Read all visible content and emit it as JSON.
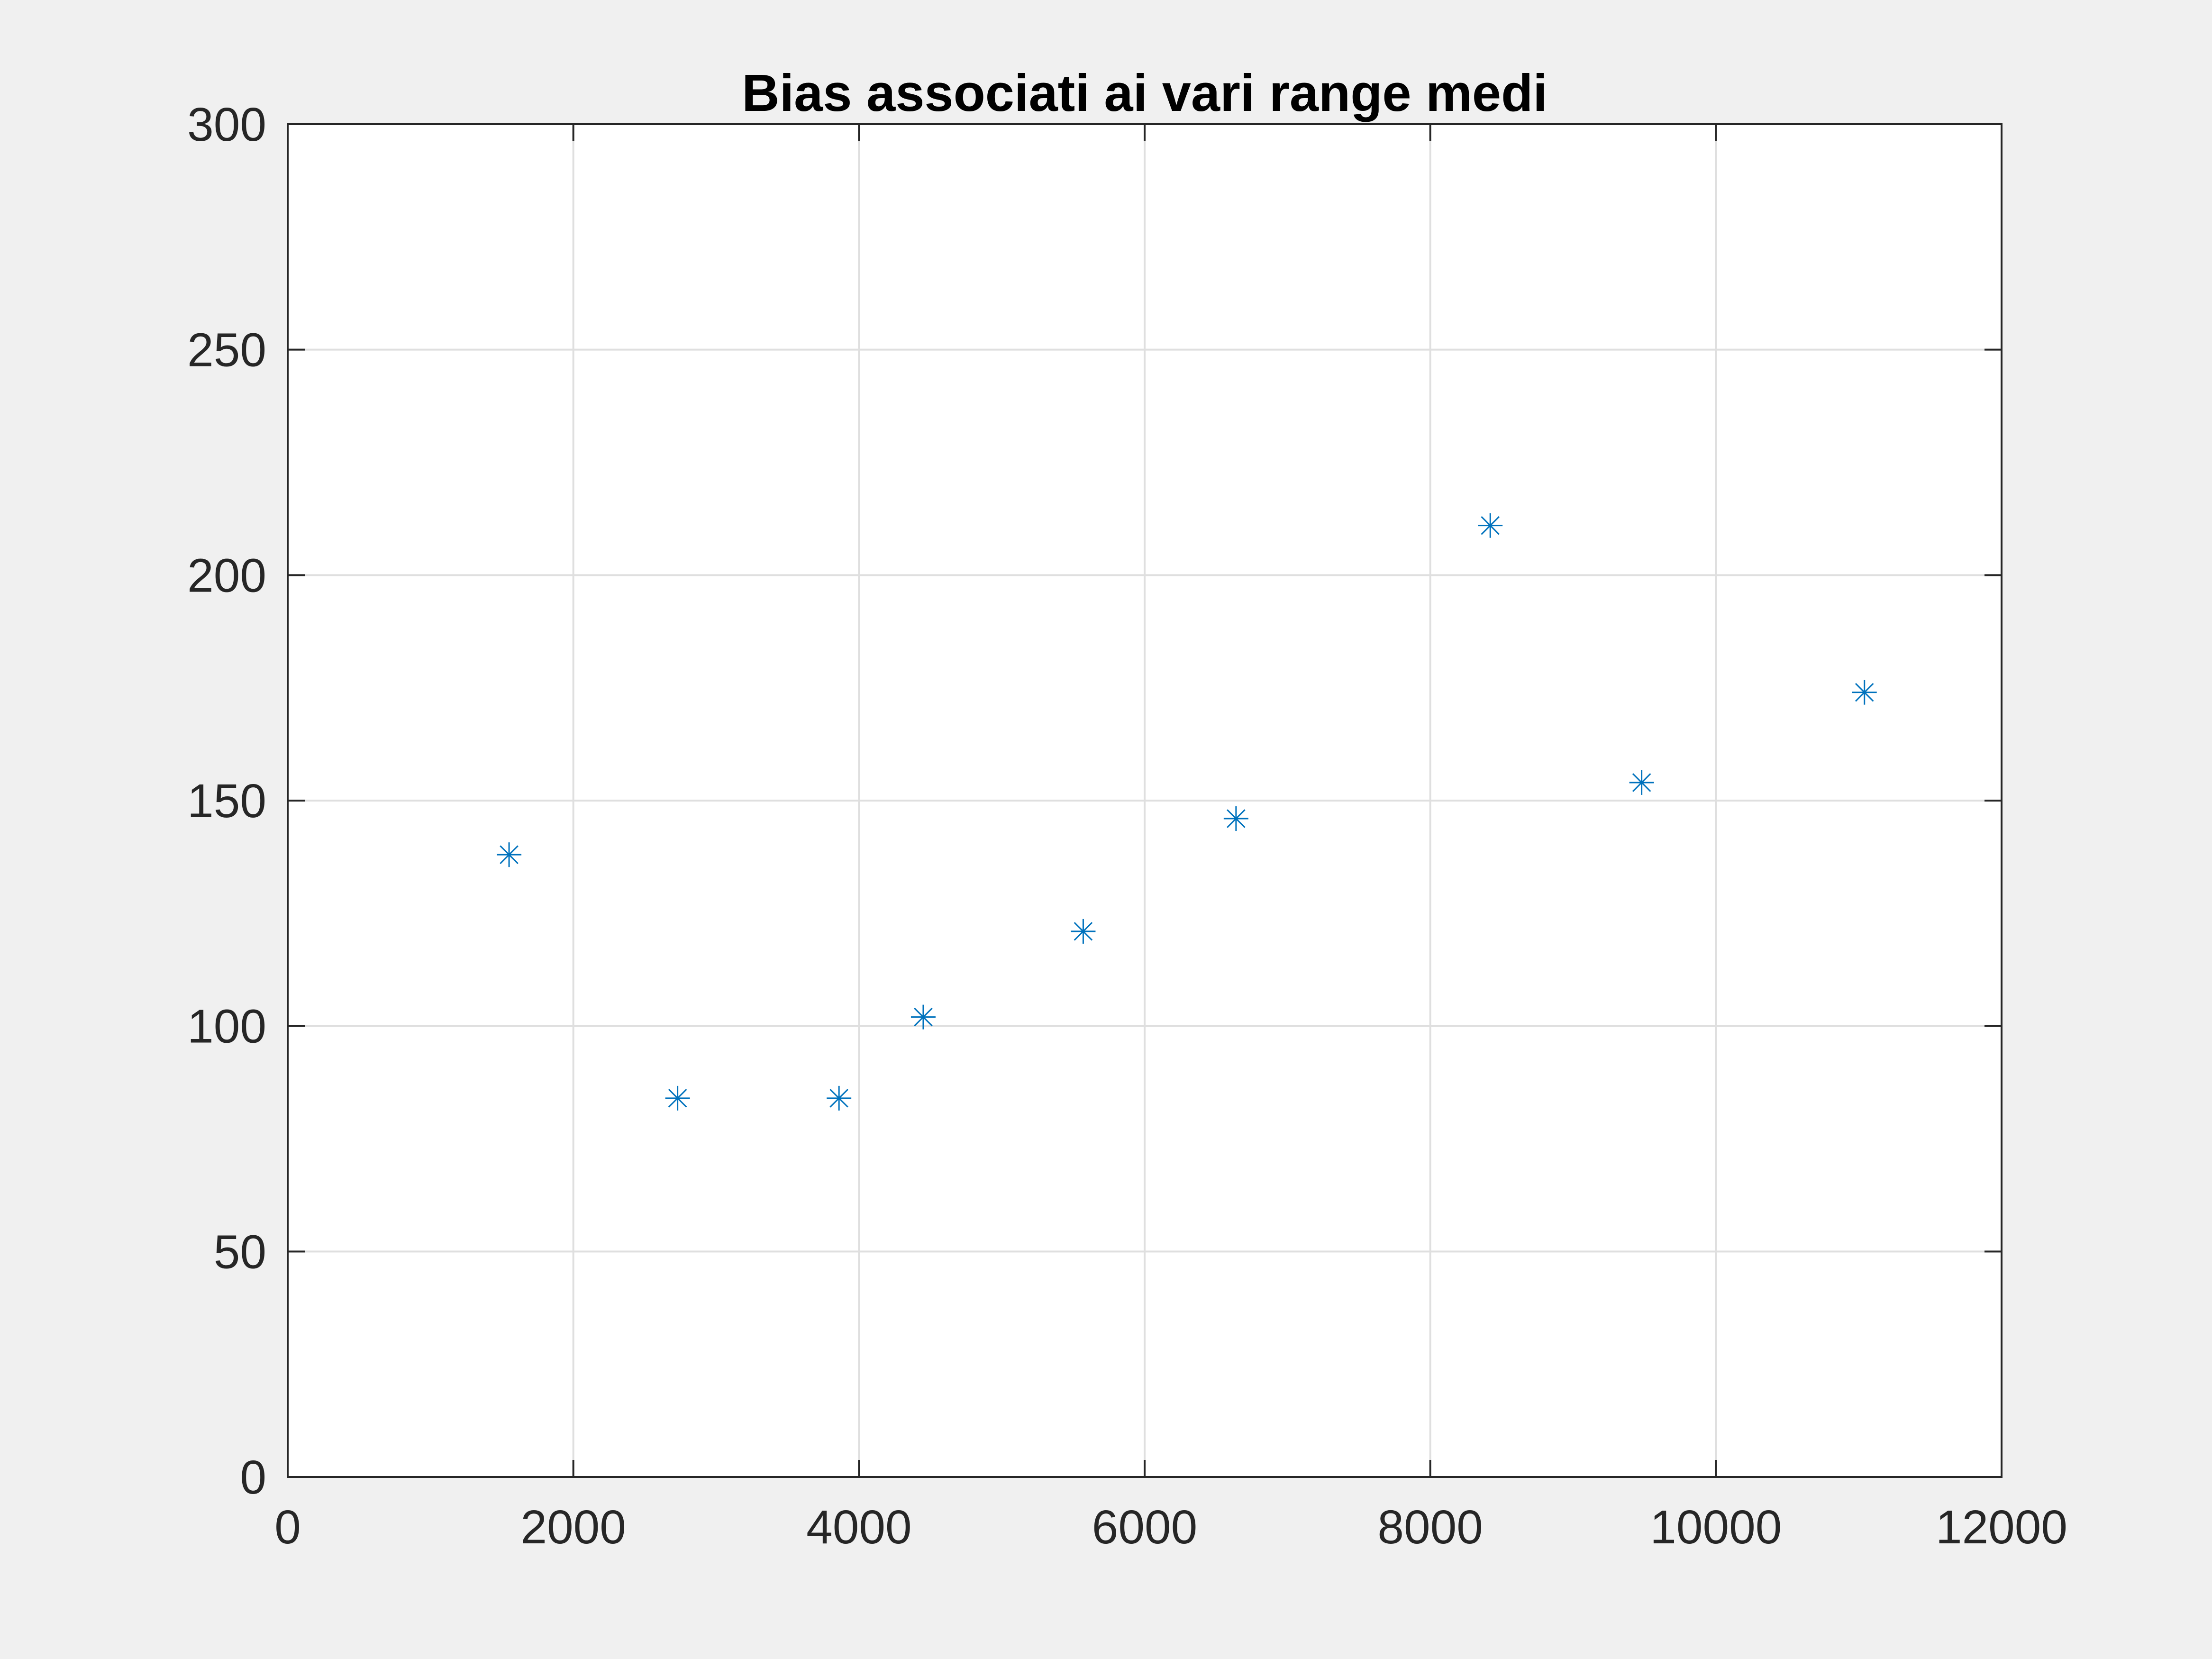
{
  "chart_data": {
    "type": "scatter",
    "title": "Bias associati ai vari range medi",
    "xlabel": "",
    "ylabel": "",
    "xlim": [
      0,
      12000
    ],
    "ylim": [
      0,
      300
    ],
    "x_ticks": [
      0,
      2000,
      4000,
      6000,
      8000,
      10000,
      12000
    ],
    "y_ticks": [
      0,
      50,
      100,
      150,
      200,
      250,
      300
    ],
    "x_tick_labels": [
      "0",
      "2000",
      "4000",
      "6000",
      "8000",
      "10000",
      "12000"
    ],
    "y_tick_labels": [
      "0",
      "50",
      "100",
      "150",
      "200",
      "250",
      "300"
    ],
    "grid": true,
    "marker": "asterisk",
    "series": [
      {
        "color": "#0072bd",
        "points": [
          {
            "x": 1550,
            "y": 138
          },
          {
            "x": 2730,
            "y": 84
          },
          {
            "x": 3860,
            "y": 84
          },
          {
            "x": 4450,
            "y": 102
          },
          {
            "x": 5570,
            "y": 121
          },
          {
            "x": 6640,
            "y": 146
          },
          {
            "x": 8420,
            "y": 211
          },
          {
            "x": 9480,
            "y": 154
          },
          {
            "x": 11040,
            "y": 174
          }
        ]
      }
    ]
  },
  "colors": {
    "figure_background": "#f0f0f0",
    "axes_background": "#ffffff",
    "axis_line": "#262626",
    "grid_line": "#dfdfdf",
    "marker": "#0072bd"
  }
}
